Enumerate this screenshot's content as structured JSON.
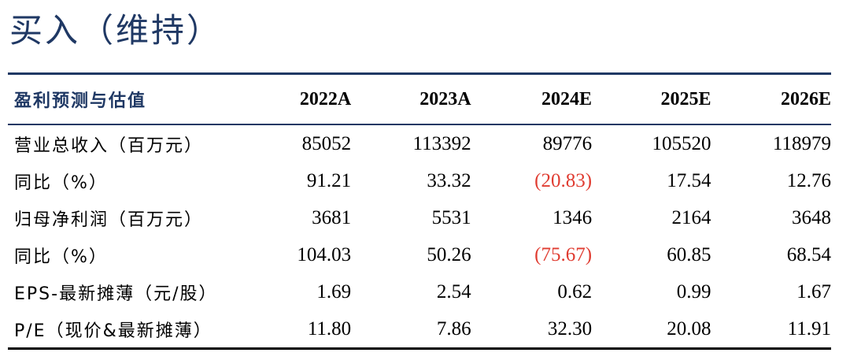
{
  "rating": "买入（维持）",
  "table": {
    "header_label": "盈利预测与估值",
    "years": [
      "2022A",
      "2023A",
      "2024E",
      "2025E",
      "2026E"
    ],
    "rows": [
      {
        "label": "营业总收入（百万元）",
        "values": [
          "85052",
          "113392",
          "89776",
          "105520",
          "118979"
        ],
        "negative": [
          false,
          false,
          false,
          false,
          false
        ]
      },
      {
        "label": "同比（%）",
        "values": [
          "91.21",
          "33.32",
          "(20.83)",
          "17.54",
          "12.76"
        ],
        "negative": [
          false,
          false,
          true,
          false,
          false
        ]
      },
      {
        "label": "归母净利润（百万元）",
        "values": [
          "3681",
          "5531",
          "1346",
          "2164",
          "3648"
        ],
        "negative": [
          false,
          false,
          false,
          false,
          false
        ]
      },
      {
        "label": "同比（%）",
        "values": [
          "104.03",
          "50.26",
          "(75.67)",
          "60.85",
          "68.54"
        ],
        "negative": [
          false,
          false,
          true,
          false,
          false
        ]
      },
      {
        "label": "EPS-最新摊薄（元/股）",
        "values": [
          "1.69",
          "2.54",
          "0.62",
          "0.99",
          "1.67"
        ],
        "negative": [
          false,
          false,
          false,
          false,
          false
        ]
      },
      {
        "label": "P/E（现价&最新摊薄）",
        "values": [
          "11.80",
          "7.86",
          "32.30",
          "20.08",
          "11.91"
        ],
        "negative": [
          false,
          false,
          false,
          false,
          false
        ]
      }
    ]
  },
  "colors": {
    "title": "#1f3864",
    "negative": "#e03c31"
  }
}
